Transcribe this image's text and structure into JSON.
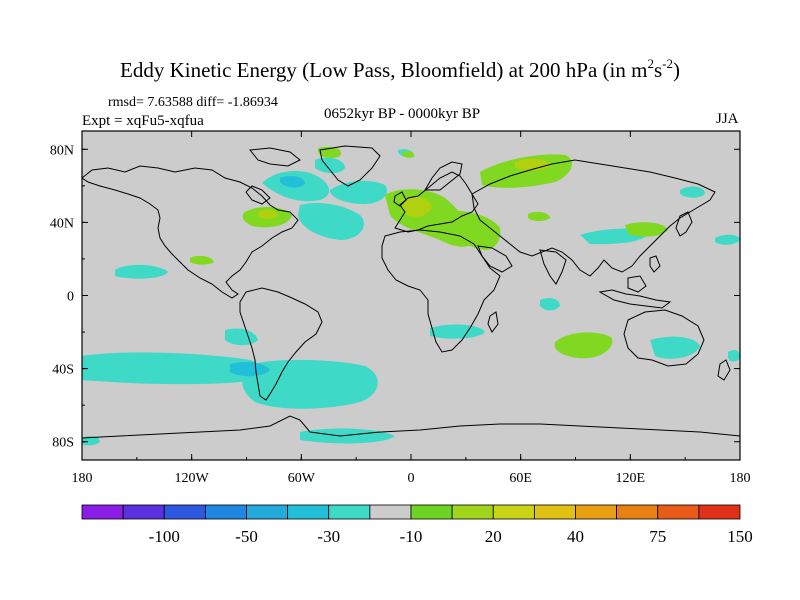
{
  "title_main": "Eddy Kinetic Energy (Low Pass, Bloomfield) at 200 hPa (in m",
  "title_unit_exp1": "2",
  "title_unit_s": "s",
  "title_unit_exp2": "-2",
  "title_close": ")",
  "rmsd_line": "rmsd= 7.63588 diff= -1.86934",
  "expt_line": "Expt = xqFu5-xqfua",
  "period": "0652kyr BP - 0000kyr BP",
  "season": "JJA",
  "colors": {
    "land_ocean_bg": "#cccccc",
    "coast": "#000000",
    "neg_light": "#3fd9c8",
    "neg_mid": "#22c0d8",
    "pos_light": "#80d820",
    "pos_mid": "#b0d010"
  },
  "chart_data": {
    "type": "map",
    "projection": "cylindrical-equidistant",
    "lon_range": [
      -180,
      180
    ],
    "lat_range": [
      -90,
      90
    ],
    "x_ticks": [
      {
        "lon": -180,
        "label": "180"
      },
      {
        "lon": -120,
        "label": "120W"
      },
      {
        "lon": -60,
        "label": "60W"
      },
      {
        "lon": 0,
        "label": "0"
      },
      {
        "lon": 60,
        "label": "60E"
      },
      {
        "lon": 120,
        "label": "120E"
      },
      {
        "lon": 180,
        "label": "180"
      }
    ],
    "y_ticks": [
      {
        "lat": 80,
        "label": "80N"
      },
      {
        "lat": 40,
        "label": "40N"
      },
      {
        "lat": 0,
        "label": "0"
      },
      {
        "lat": -40,
        "label": "40S"
      },
      {
        "lat": -80,
        "label": "80S"
      }
    ],
    "colorbar": {
      "colors": [
        "#8a1ee6",
        "#5a30e0",
        "#2f58e0",
        "#1e88e0",
        "#22aadb",
        "#22c0d8",
        "#3fd9c8",
        "#cccccc",
        "#6ed424",
        "#a0d61a",
        "#c8d414",
        "#e0c010",
        "#e8a012",
        "#e88014",
        "#e85a18",
        "#e03018"
      ],
      "labels": [
        "-100",
        "-50",
        "-30",
        "-10",
        "20",
        "40",
        "75",
        "150"
      ]
    },
    "anomaly_regions": [
      {
        "name": "north-atlantic-negative",
        "sign": "negative",
        "center_lon": -50,
        "center_lat": 50
      },
      {
        "name": "southern-ocean-negative",
        "sign": "negative",
        "center_lon": -90,
        "center_lat": -38
      },
      {
        "name": "south-atlantic-negative",
        "sign": "negative",
        "center_lon": -30,
        "center_lat": -48
      },
      {
        "name": "europe-positive",
        "sign": "positive",
        "center_lon": 15,
        "center_lat": 45
      },
      {
        "name": "siberia-positive",
        "sign": "positive",
        "center_lon": 75,
        "center_lat": 70
      },
      {
        "name": "north-america-positive",
        "sign": "positive",
        "center_lon": -70,
        "center_lat": 42
      },
      {
        "name": "indian-ocean-positive",
        "sign": "positive",
        "center_lon": 75,
        "center_lat": -28
      },
      {
        "name": "australia-negative",
        "sign": "negative",
        "center_lon": 145,
        "center_lat": -30
      }
    ]
  }
}
